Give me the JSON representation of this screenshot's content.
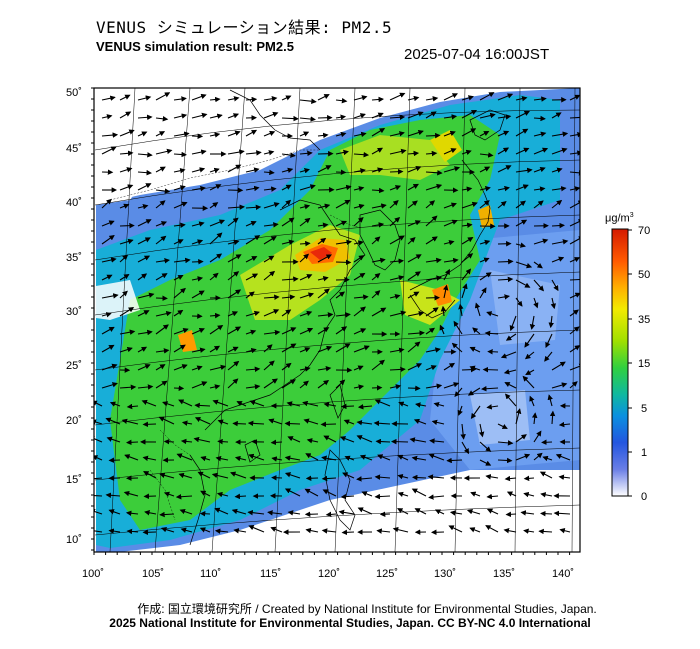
{
  "header": {
    "title_jp": "VENUS シミュレーション結果: PM2.5",
    "title_en": "VENUS simulation result: PM2.5",
    "datetime": "2025-07-04 16:00JST"
  },
  "map": {
    "lon_labels": [
      "100˚",
      "105˚",
      "110˚",
      "115˚",
      "120˚",
      "125˚",
      "130˚",
      "135˚",
      "140˚"
    ],
    "lat_labels": [
      "50˚",
      "45˚",
      "40˚",
      "35˚",
      "30˚",
      "25˚",
      "20˚",
      "15˚",
      "10˚"
    ],
    "lon_range": [
      100,
      142
    ],
    "lat_range": [
      9,
      51
    ]
  },
  "colorbar": {
    "unit": "μg/m",
    "unit_sup": "3",
    "labels": [
      "70",
      "50",
      "35",
      "15",
      "5",
      "1",
      "0"
    ],
    "colors": [
      "#ff1a00",
      "#ffa000",
      "#f5e600",
      "#55dd22",
      "#0fa0d0",
      "#2050e0",
      "#7d8ae8",
      "#ffffff"
    ]
  },
  "footer": {
    "credit": "作成: 国立環境研究所 / Created by National Institute for Environmental Studies, Japan.",
    "copyright": "2025 National Institute for Environmental Studies, Japan. CC BY-NC 4.0 International"
  }
}
